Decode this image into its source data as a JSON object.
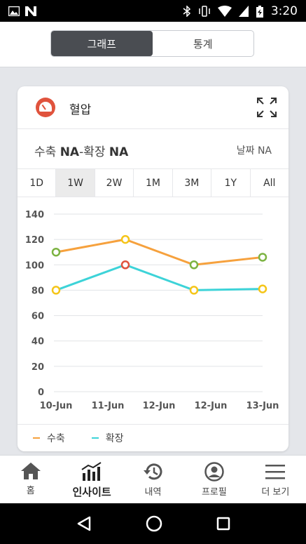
{
  "status_bar": {
    "time": "3:20"
  },
  "segment": {
    "tabs": [
      {
        "label": "그래프",
        "active": true
      },
      {
        "label": "통계",
        "active": false
      }
    ]
  },
  "card": {
    "title": "혈압",
    "summary": {
      "systolic_label": "수축",
      "systolic_value": "NA",
      "separator": "-",
      "diastolic_label": "확장",
      "diastolic_value": "NA",
      "date_label": "날짜 NA"
    },
    "ranges": [
      "1D",
      "1W",
      "2W",
      "1M",
      "3M",
      "1Y",
      "All"
    ],
    "active_range": "1W",
    "legend": [
      {
        "label": "수축",
        "color": "#f6a13d"
      },
      {
        "label": "확장",
        "color": "#3dd3d8"
      }
    ]
  },
  "chart_data": {
    "type": "line",
    "categories": [
      "10-Jun",
      "11-Jun",
      "12-Jun",
      "12-Jun",
      "13-Jun"
    ],
    "series": [
      {
        "name": "수축",
        "color": "#f6a13d",
        "values": [
          110,
          120,
          null,
          100,
          106
        ],
        "point_colors": [
          "#7cb342",
          "#f5c518",
          null,
          "#7cb342",
          "#7cb342"
        ]
      },
      {
        "name": "확장",
        "color": "#3dd3d8",
        "values": [
          80,
          100,
          null,
          80,
          81
        ],
        "point_colors": [
          "#f5c518",
          "#e0533d",
          null,
          "#f5c518",
          "#f5c518"
        ]
      }
    ],
    "yticks": [
      0,
      20,
      40,
      60,
      80,
      100,
      120,
      140
    ],
    "ylim": [
      0,
      140
    ],
    "grid": true
  },
  "bottom_nav": [
    {
      "label": "홈",
      "icon": "home-icon",
      "active": false
    },
    {
      "label": "인사이트",
      "icon": "insights-icon",
      "active": true
    },
    {
      "label": "내역",
      "icon": "history-icon",
      "active": false
    },
    {
      "label": "프로필",
      "icon": "profile-icon",
      "active": false
    },
    {
      "label": "더 보기",
      "icon": "menu-icon",
      "active": false
    }
  ]
}
